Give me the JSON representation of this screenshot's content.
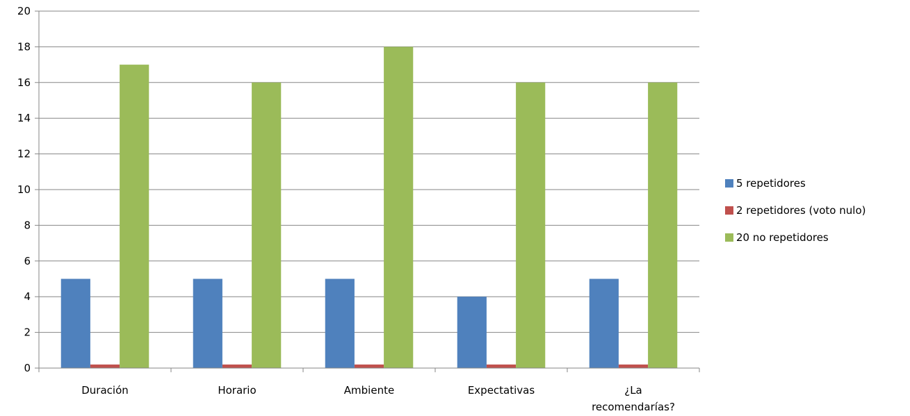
{
  "chart_data": {
    "type": "bar",
    "categories": [
      "Duración",
      "Horario",
      "Ambiente",
      "Expectativas",
      "¿La recomendarías?"
    ],
    "category_lines": [
      [
        "Duración"
      ],
      [
        "Horario"
      ],
      [
        "Ambiente"
      ],
      [
        "Expectativas"
      ],
      [
        "¿La",
        "recomendarías?"
      ]
    ],
    "series": [
      {
        "name": "5 repetidores",
        "color": "#4F81BD",
        "values": [
          5,
          5,
          5,
          4,
          5
        ]
      },
      {
        "name": "2 repetidores (voto nulo)",
        "color": "#C0504D",
        "values": [
          0.2,
          0.2,
          0.2,
          0.2,
          0.2
        ]
      },
      {
        "name": "20 no repetidores",
        "color": "#9BBB59",
        "values": [
          17,
          16,
          18,
          16,
          16
        ]
      }
    ],
    "ylim": [
      0,
      20
    ],
    "yticks": [
      0,
      2,
      4,
      6,
      8,
      10,
      12,
      14,
      16,
      18,
      20
    ],
    "grid": true,
    "legend_position": "right"
  }
}
